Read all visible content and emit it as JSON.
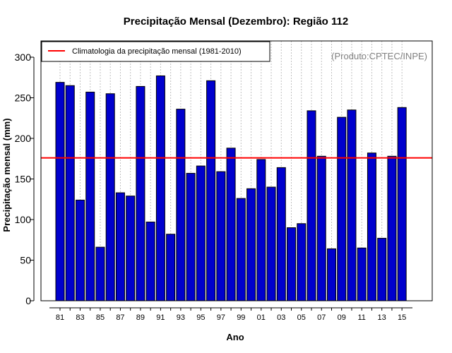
{
  "chart_data": {
    "type": "bar",
    "title": "Precipitação Mensal (Dezembro): Região 112",
    "xlabel": "Ano",
    "ylabel": "Precipitação mensal (mm)",
    "credit": "(Produto:CPTEC/INPE)",
    "ylim": [
      0,
      320
    ],
    "yticks": [
      0,
      50,
      100,
      150,
      200,
      250,
      300
    ],
    "categories": [
      "81",
      "82",
      "83",
      "84",
      "85",
      "86",
      "87",
      "88",
      "89",
      "90",
      "91",
      "92",
      "93",
      "94",
      "95",
      "96",
      "97",
      "98",
      "99",
      "00",
      "01",
      "02",
      "03",
      "04",
      "05",
      "06",
      "07",
      "08",
      "09",
      "10",
      "11",
      "12",
      "13",
      "14",
      "15"
    ],
    "tick_labels": [
      "81",
      "83",
      "85",
      "87",
      "89",
      "91",
      "93",
      "95",
      "97",
      "99",
      "01",
      "03",
      "05",
      "07",
      "09",
      "11",
      "13",
      "15"
    ],
    "values": [
      269,
      265,
      124,
      257,
      66,
      255,
      133,
      129,
      264,
      97,
      277,
      82,
      236,
      157,
      166,
      271,
      159,
      188,
      126,
      138,
      174,
      140,
      164,
      90,
      95,
      234,
      178,
      64,
      226,
      235,
      65,
      182,
      77,
      178,
      238
    ],
    "climatology": {
      "label": "Climatologia da precipitação mensal (1981-2010)",
      "value": 176
    },
    "colors": {
      "bar_fill": "#0000cd",
      "bar_stroke": "#000000",
      "climatology_line": "#ff0000",
      "grid": "#c0c0c0",
      "credit_text": "#808080"
    },
    "grid": true,
    "legend_position": "top-left"
  }
}
